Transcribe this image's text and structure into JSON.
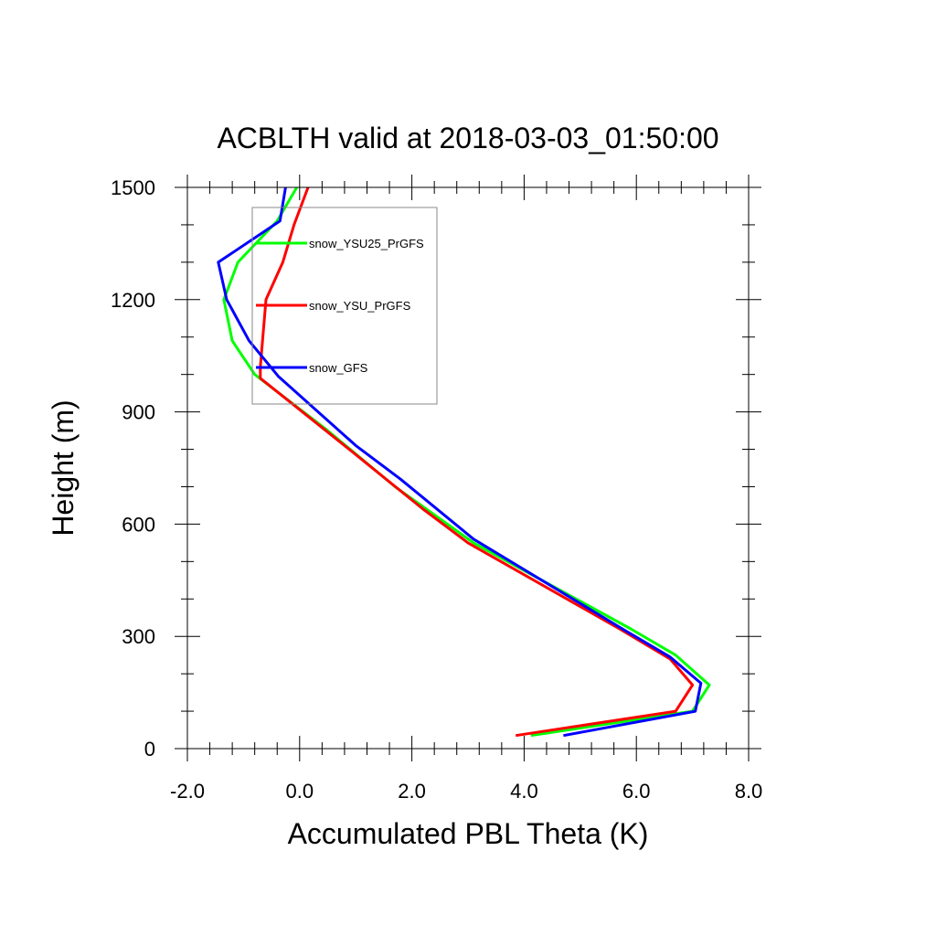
{
  "chart_data": {
    "type": "line",
    "title": "ACBLTH valid at 2018-03-03_01:50:00",
    "xlabel": "Accumulated PBL Theta (K)",
    "ylabel": "Height (m)",
    "xlim": [
      -2.0,
      8.0
    ],
    "ylim": [
      0,
      1500
    ],
    "xticks": [
      -2.0,
      0.0,
      2.0,
      4.0,
      6.0,
      8.0
    ],
    "xtick_labels": [
      "-2.0",
      "0.0",
      "2.0",
      "4.0",
      "6.0",
      "8.0"
    ],
    "yticks": [
      0,
      300,
      600,
      900,
      1200,
      1500
    ],
    "ytick_labels": [
      "0",
      "300",
      "600",
      "900",
      "1200",
      "1500"
    ],
    "grid": false,
    "legend": {
      "placement": "top-left",
      "entries": [
        "snow_YSU25_PrGFS",
        "snow_YSU_PrGFS",
        "snow_GFS"
      ]
    },
    "series": [
      {
        "name": "snow_YSU25_PrGFS",
        "color": "#00ff00",
        "points": [
          [
            4.12,
            35
          ],
          [
            7.0,
            100
          ],
          [
            7.3,
            170
          ],
          [
            6.7,
            250
          ],
          [
            5.9,
            320
          ],
          [
            3.1,
            550
          ],
          [
            1.7,
            700
          ],
          [
            0.5,
            850
          ],
          [
            -0.8,
            1000
          ],
          [
            -1.2,
            1090
          ],
          [
            -1.35,
            1200
          ],
          [
            -1.1,
            1300
          ],
          [
            -0.4,
            1410
          ],
          [
            -0.05,
            1500
          ]
        ]
      },
      {
        "name": "snow_YSU_PrGFS",
        "color": "#ff0000",
        "points": [
          [
            3.85,
            35
          ],
          [
            6.7,
            100
          ],
          [
            7.0,
            170
          ],
          [
            6.6,
            240
          ],
          [
            5.7,
            320
          ],
          [
            3.0,
            550
          ],
          [
            2.2,
            640
          ],
          [
            0.8,
            810
          ],
          [
            -0.7,
            990
          ],
          [
            -0.7,
            1020
          ],
          [
            -0.6,
            1200
          ],
          [
            -0.3,
            1300
          ],
          [
            -0.1,
            1400
          ],
          [
            0.15,
            1500
          ]
        ]
      },
      {
        "name": "snow_GFS",
        "color": "#0000ff",
        "points": [
          [
            4.7,
            35
          ],
          [
            7.05,
            100
          ],
          [
            7.15,
            175
          ],
          [
            6.6,
            245
          ],
          [
            5.75,
            320
          ],
          [
            3.1,
            560
          ],
          [
            1.8,
            720
          ],
          [
            1.0,
            810
          ],
          [
            -0.38,
            995
          ],
          [
            -0.9,
            1090
          ],
          [
            -1.3,
            1200
          ],
          [
            -1.45,
            1300
          ],
          [
            -0.35,
            1410
          ],
          [
            -0.25,
            1500
          ]
        ]
      }
    ]
  }
}
